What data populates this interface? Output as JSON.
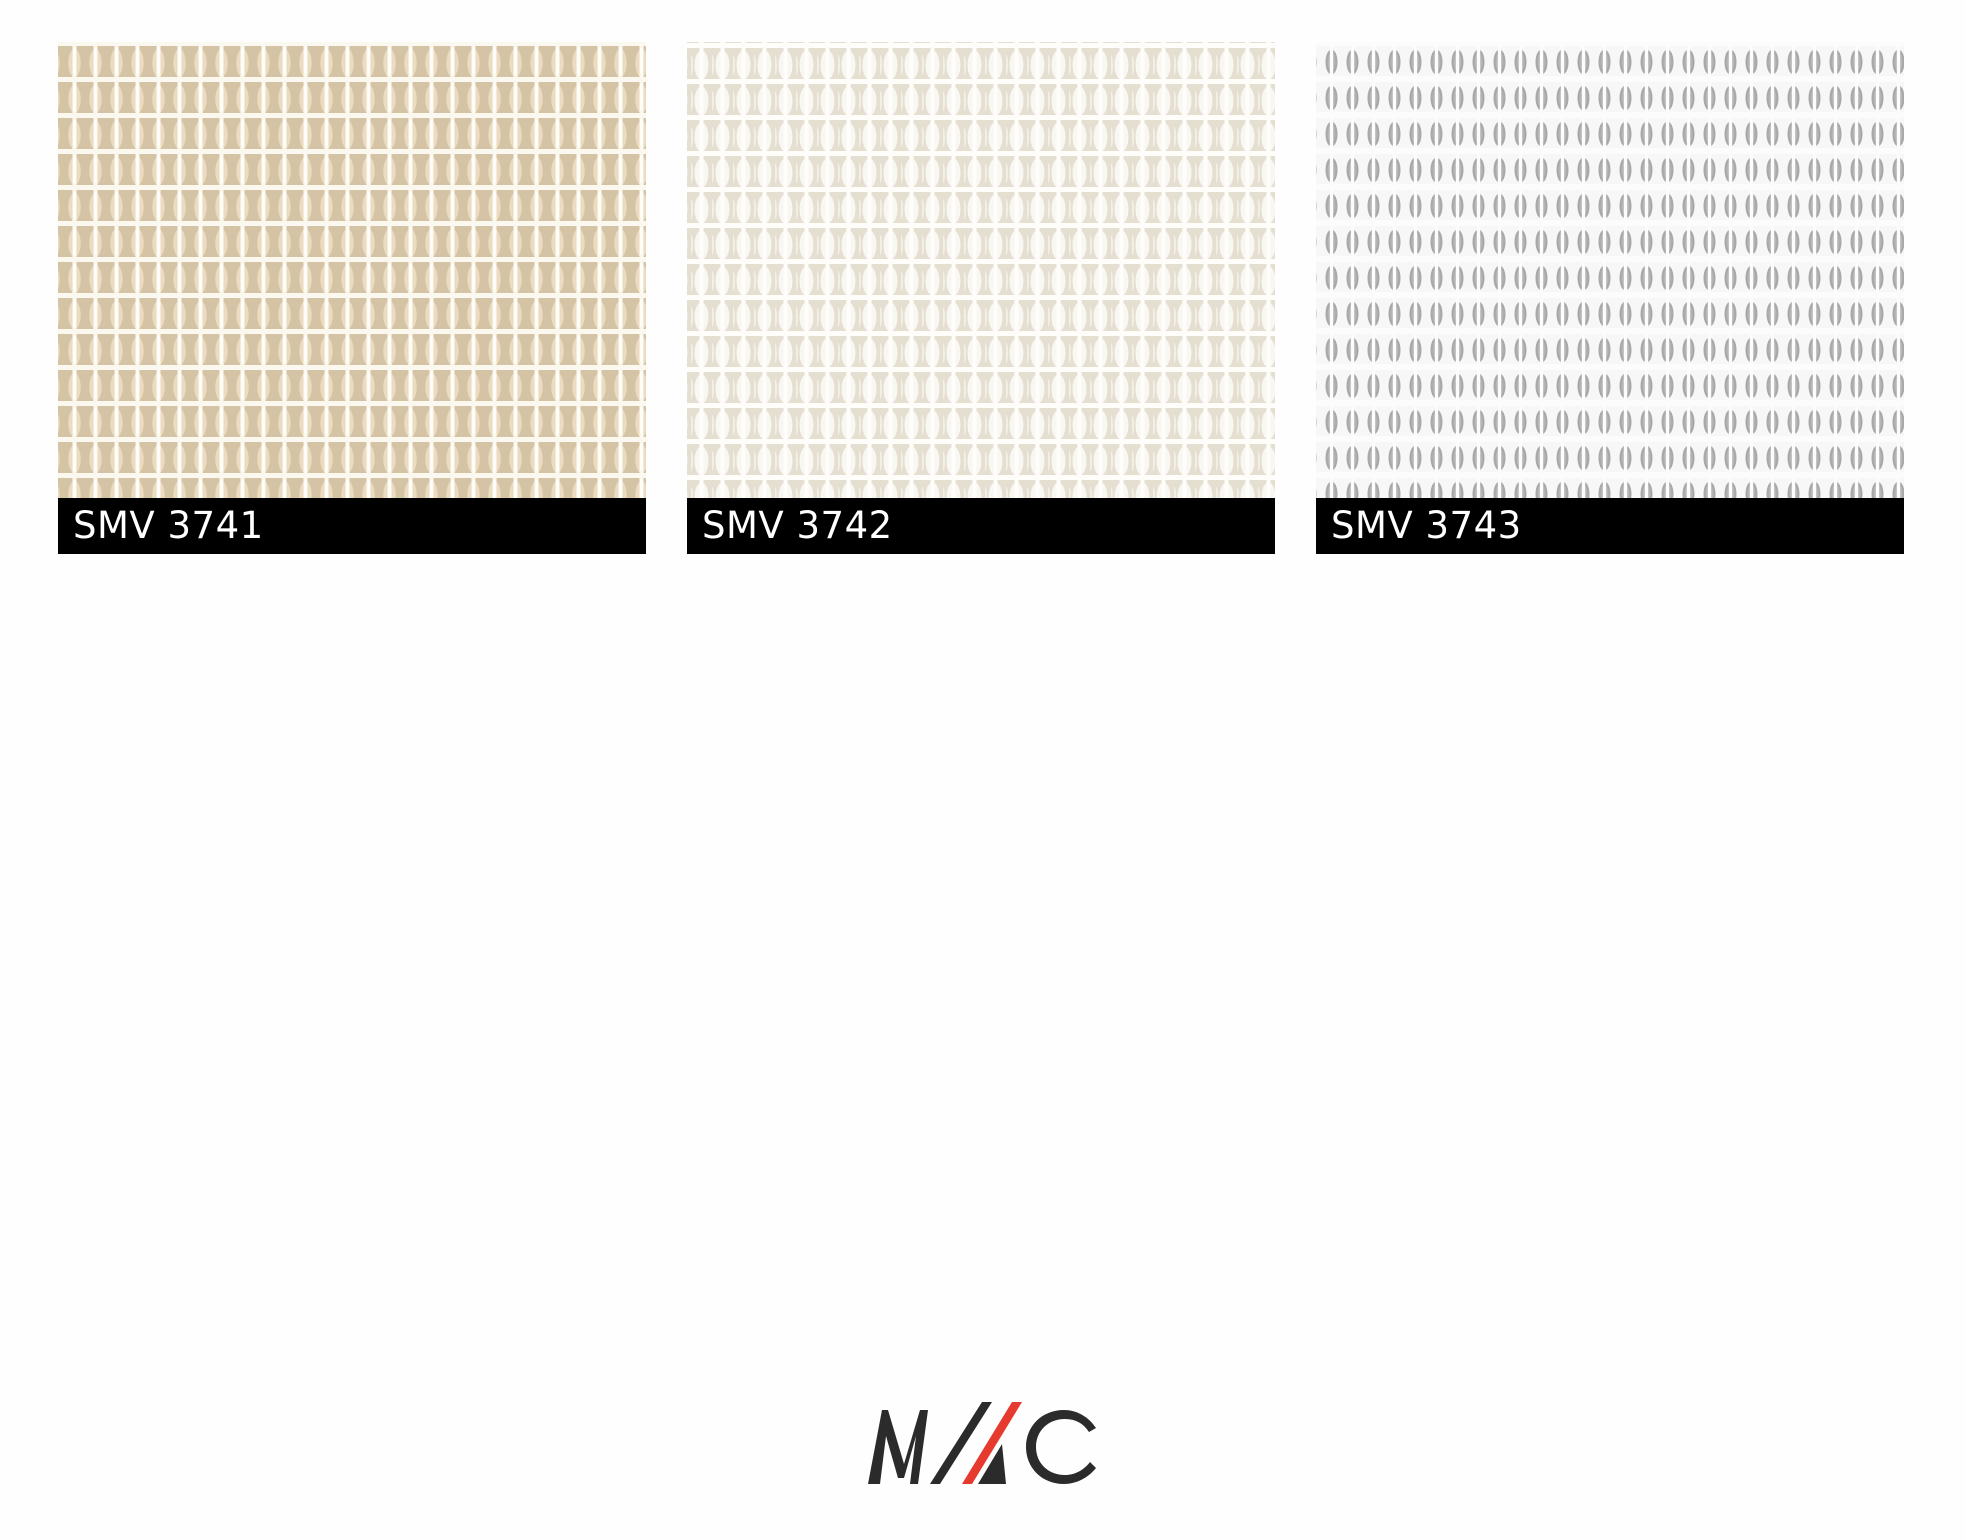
{
  "swatches": [
    {
      "code": "SMV 3741",
      "colors": {
        "base": "#e2d2b6",
        "pod": "#e9d9bd",
        "thread": "#fbf8f0"
      }
    },
    {
      "code": "SMV 3742",
      "colors": {
        "base": "#ebe7db",
        "pod": "#f8f6f0",
        "thread": "#fefdfa"
      }
    },
    {
      "code": "SMV 3743",
      "colors": {
        "base": "#f4f4f4",
        "pod": "#a9a9a9",
        "thread": "#fcfcfc"
      }
    }
  ],
  "logo": {
    "name": "mac-logo",
    "colors": {
      "text": "#2b2b2b",
      "accent": "#e63a2e"
    }
  }
}
